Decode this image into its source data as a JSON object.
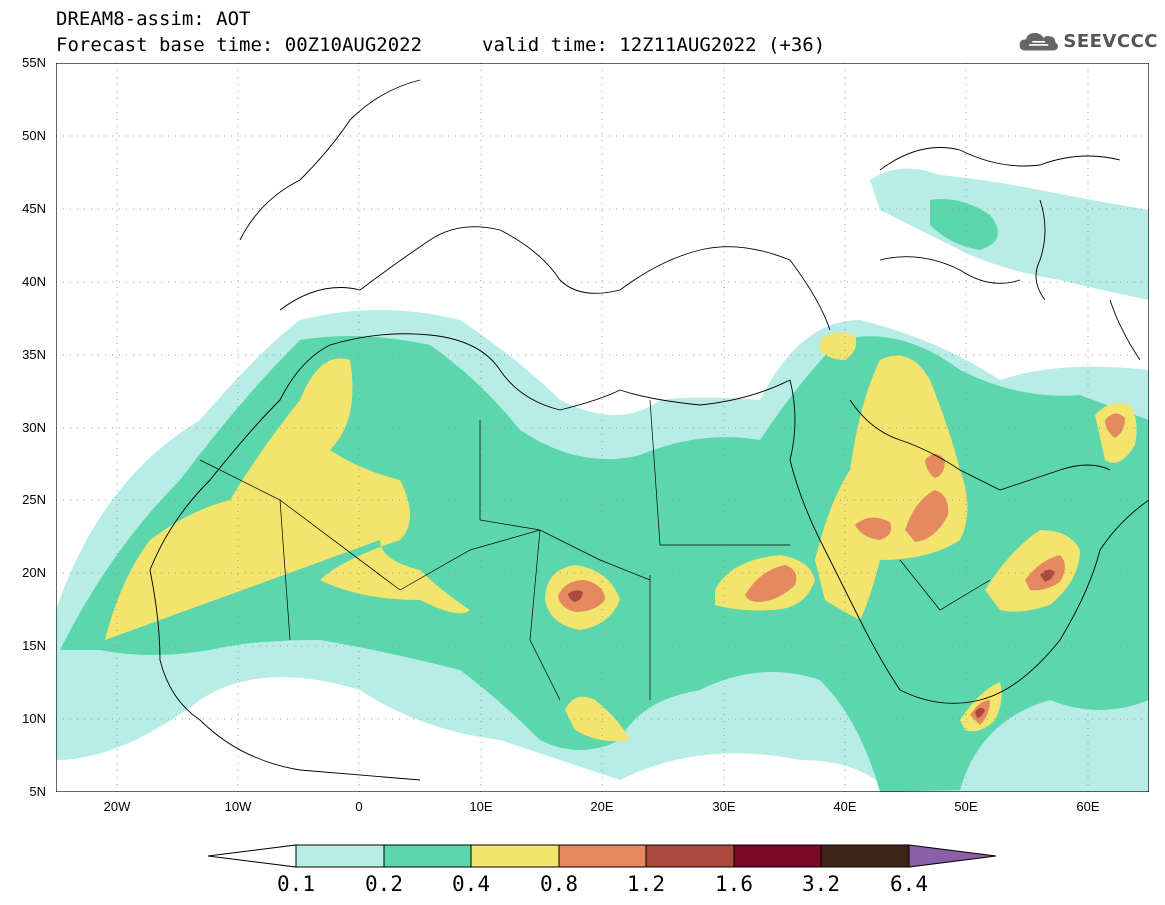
{
  "header": {
    "title": "DREAM8-assim: AOT",
    "subtitle": "Forecast base time: 00Z10AUG2022",
    "valid_time": "valid time: 12Z11AUG2022 (+36)",
    "logo_text": "SEEVCCC"
  },
  "map": {
    "region": "North Africa / Middle East",
    "lat_labels": [
      "55N",
      "50N",
      "45N",
      "40N",
      "35N",
      "30N",
      "25N",
      "20N",
      "15N",
      "10N",
      "5N"
    ],
    "lon_labels": [
      "20W",
      "10W",
      "0",
      "10E",
      "20E",
      "30E",
      "40E",
      "50E",
      "60E"
    ],
    "colors": {
      "background": "#ffffff",
      "coast": "#000000",
      "grid": "#9a9a9a"
    }
  },
  "colorbar": {
    "labels": [
      "0.1",
      "0.2",
      "0.4",
      "0.8",
      "1.2",
      "1.6",
      "3.2",
      "6.4"
    ],
    "colors": [
      "#b7ede6",
      "#5cd6ad",
      "#f2e46c",
      "#e48960",
      "#a94a3d",
      "#7a0a26",
      "#3e2516",
      "#8a5fa8"
    ]
  }
}
